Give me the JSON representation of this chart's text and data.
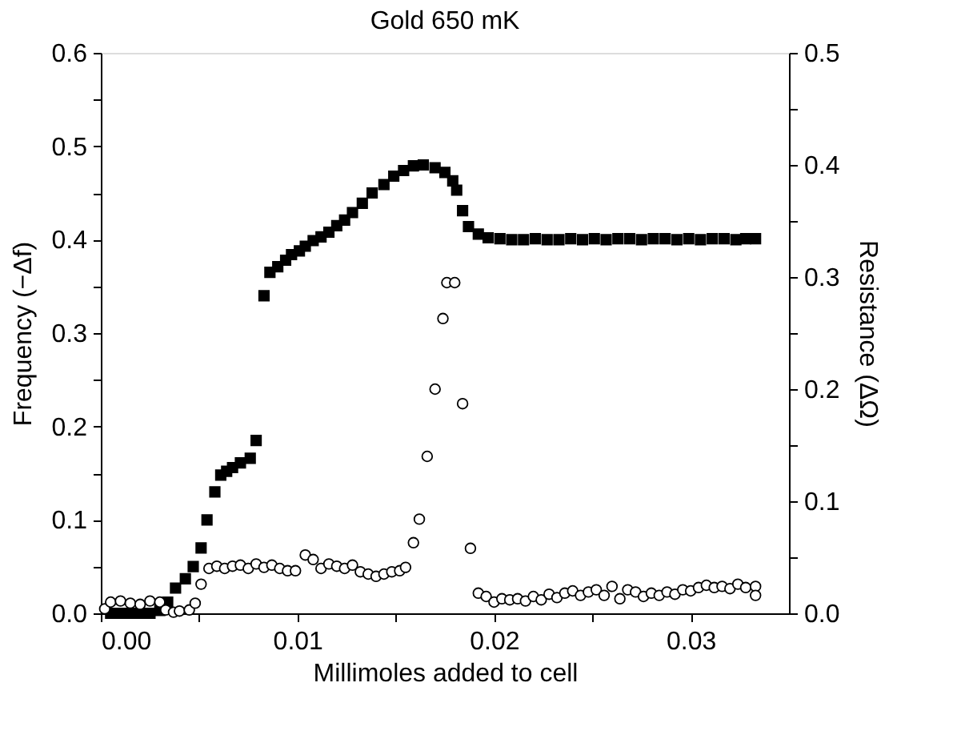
{
  "chart_data": {
    "type": "scatter",
    "title": "Gold 650 mK",
    "xlabel": "Millimoles added to cell",
    "ylabel": "Frequency (−Δf)",
    "y2label": "Resistance (ΔΩ)",
    "xlim": [
      0,
      0.035
    ],
    "xticks": [
      {
        "value": 0,
        "label": "0.00"
      },
      {
        "value": 0.005,
        "label": null
      },
      {
        "value": 0.01,
        "label": "0.01"
      },
      {
        "value": 0.015,
        "label": null
      },
      {
        "value": 0.02,
        "label": "0.02"
      },
      {
        "value": 0.025,
        "label": null
      },
      {
        "value": 0.03,
        "label": "0.03"
      }
    ],
    "ylim": [
      0,
      0.6
    ],
    "yticks": [
      {
        "value": 0,
        "label": "0.0"
      },
      {
        "value": 0.05,
        "label": null
      },
      {
        "value": 0.1,
        "label": "0.1"
      },
      {
        "value": 0.15,
        "label": null
      },
      {
        "value": 0.2,
        "label": "0.2"
      },
      {
        "value": 0.25,
        "label": null
      },
      {
        "value": 0.3,
        "label": "0.3"
      },
      {
        "value": 0.35,
        "label": null
      },
      {
        "value": 0.4,
        "label": "0.4"
      },
      {
        "value": 0.45,
        "label": null
      },
      {
        "value": 0.5,
        "label": "0.5"
      },
      {
        "value": 0.55,
        "label": null
      },
      {
        "value": 0.6,
        "label": "0.6"
      }
    ],
    "y2lim": [
      0,
      0.5
    ],
    "y2ticks": [
      {
        "value": 0,
        "label": "0.0"
      },
      {
        "value": 0.05,
        "label": null
      },
      {
        "value": 0.1,
        "label": "0.1"
      },
      {
        "value": 0.15,
        "label": null
      },
      {
        "value": 0.2,
        "label": "0.2"
      },
      {
        "value": 0.25,
        "label": null
      },
      {
        "value": 0.3,
        "label": "0.3"
      },
      {
        "value": 0.35,
        "label": null
      },
      {
        "value": 0.4,
        "label": "0.4"
      },
      {
        "value": 0.45,
        "label": null
      },
      {
        "value": 0.5,
        "label": "0.5"
      }
    ],
    "grid": false,
    "series": [
      {
        "color": "#000000",
        "marker": "square",
        "x": [
          0.0005,
          0.001,
          0.0015,
          0.002,
          0.0025,
          0.003,
          0.0034,
          0.0038,
          0.0043,
          0.0047,
          0.0051,
          0.0054,
          0.0058,
          0.0061,
          0.0064,
          0.0067,
          0.0071,
          0.0076,
          0.0079,
          0.0083,
          0.0086,
          0.009,
          0.0094,
          0.0097,
          0.0101,
          0.0104,
          0.0108,
          0.0112,
          0.0116,
          0.012,
          0.0124,
          0.0128,
          0.0133,
          0.0138,
          0.0144,
          0.0149,
          0.0154,
          0.0159,
          0.0164,
          0.017,
          0.0175,
          0.0179,
          0.0181,
          0.0184,
          0.0187,
          0.0192,
          0.0197,
          0.0203,
          0.0209,
          0.0215,
          0.0221,
          0.0227,
          0.0233,
          0.0239,
          0.0245,
          0.0251,
          0.0257,
          0.0263,
          0.0269,
          0.0275,
          0.0281,
          0.0287,
          0.0293,
          0.0299,
          0.0305,
          0.0311,
          0.0317,
          0.0323,
          0.0328,
          0.0333
        ],
        "values": [
          0.0,
          0.0,
          0.0,
          0.0,
          0.0,
          0.003,
          0.012,
          0.027,
          0.037,
          0.05,
          0.07,
          0.1,
          0.13,
          0.148,
          0.152,
          0.156,
          0.161,
          0.166,
          0.185,
          0.34,
          0.365,
          0.371,
          0.378,
          0.384,
          0.388,
          0.393,
          0.399,
          0.403,
          0.408,
          0.415,
          0.421,
          0.429,
          0.439,
          0.45,
          0.459,
          0.468,
          0.474,
          0.479,
          0.48,
          0.477,
          0.472,
          0.463,
          0.453,
          0.431,
          0.414,
          0.406,
          0.402,
          0.401,
          0.4,
          0.4,
          0.401,
          0.4,
          0.4,
          0.401,
          0.4,
          0.401,
          0.4,
          0.401,
          0.401,
          0.4,
          0.401,
          0.401,
          0.4,
          0.401,
          0.4,
          0.401,
          0.401,
          0.4,
          0.401,
          0.401
        ]
      },
      {
        "color": "#000000",
        "marker": "circle",
        "axis": "y2",
        "x": [
          0.0002,
          0.0005,
          0.001,
          0.0015,
          0.002,
          0.0025,
          0.003,
          0.0033,
          0.0037,
          0.004,
          0.0045,
          0.0048,
          0.0051,
          0.0055,
          0.0059,
          0.0063,
          0.0067,
          0.0071,
          0.0075,
          0.0079,
          0.0083,
          0.0087,
          0.0091,
          0.0095,
          0.0099,
          0.0104,
          0.0108,
          0.0112,
          0.0116,
          0.012,
          0.0124,
          0.0128,
          0.0132,
          0.0136,
          0.014,
          0.0144,
          0.0148,
          0.0152,
          0.0155,
          0.0159,
          0.0162,
          0.0166,
          0.017,
          0.0174,
          0.0176,
          0.018,
          0.0184,
          0.0188,
          0.0192,
          0.0196,
          0.02,
          0.0204,
          0.0208,
          0.0212,
          0.0216,
          0.022,
          0.0224,
          0.0228,
          0.0232,
          0.0236,
          0.024,
          0.0244,
          0.0248,
          0.0252,
          0.0256,
          0.026,
          0.0264,
          0.0268,
          0.0272,
          0.0276,
          0.028,
          0.0284,
          0.0288,
          0.0292,
          0.0296,
          0.03,
          0.0304,
          0.0308,
          0.0312,
          0.0316,
          0.032,
          0.0324,
          0.0328,
          0.0333,
          0.0333
        ],
        "values": [
          0.004,
          0.01,
          0.011,
          0.009,
          0.008,
          0.011,
          0.01,
          0.003,
          0.001,
          0.002,
          0.003,
          0.009,
          0.026,
          0.04,
          0.042,
          0.04,
          0.042,
          0.043,
          0.04,
          0.044,
          0.041,
          0.043,
          0.04,
          0.038,
          0.038,
          0.052,
          0.048,
          0.04,
          0.044,
          0.042,
          0.04,
          0.043,
          0.037,
          0.035,
          0.033,
          0.035,
          0.037,
          0.038,
          0.041,
          0.063,
          0.084,
          0.14,
          0.2,
          0.263,
          0.295,
          0.295,
          0.187,
          0.058,
          0.018,
          0.015,
          0.01,
          0.013,
          0.012,
          0.013,
          0.011,
          0.015,
          0.012,
          0.017,
          0.014,
          0.018,
          0.02,
          0.016,
          0.019,
          0.021,
          0.016,
          0.024,
          0.013,
          0.021,
          0.019,
          0.015,
          0.018,
          0.016,
          0.019,
          0.017,
          0.021,
          0.02,
          0.023,
          0.025,
          0.023,
          0.024,
          0.022,
          0.026,
          0.023,
          0.024,
          0.016
        ]
      }
    ]
  }
}
